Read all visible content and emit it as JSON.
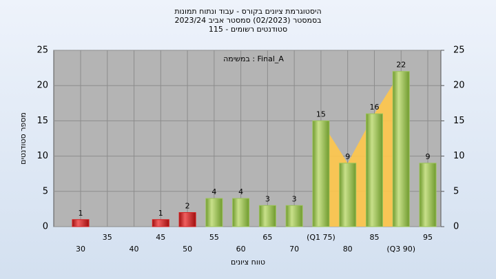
{
  "chart_data": {
    "type": "bar",
    "title": [
      "היסטוגרמת ציונים בקורס - עבוד ונתוח תמונות",
      "בסמסטר  (02/2023)  סמסטר אביב 2023/24",
      "סטודנטים רשומים - 115"
    ],
    "annotation": "במשימה : Final_A",
    "x_label": "טווח ציונים",
    "y_label": "מספר סטודנטים",
    "categories": [
      "30",
      "35",
      "40",
      "45",
      "50",
      "55",
      "60",
      "65",
      "70",
      "(Q1 75)",
      "80",
      "85",
      "(Q3 90)",
      "95"
    ],
    "values": [
      1,
      0,
      0,
      1,
      2,
      4,
      4,
      3,
      3,
      15,
      9,
      16,
      22,
      9
    ],
    "colors": [
      "#d42020",
      "#d42020",
      "#d42020",
      "#d42020",
      "#d42020",
      "#9cc35a",
      "#9cc35a",
      "#9cc35a",
      "#9cc35a",
      "#9cc35a",
      "#9cc35a",
      "#9cc35a",
      "#9cc35a",
      "#9cc35a"
    ],
    "area_color": "#ffc64a",
    "ylim": [
      0,
      25
    ],
    "yticks": [
      0,
      5,
      10,
      15,
      20,
      25
    ],
    "y2lim": [
      0,
      25
    ],
    "y2ticks": [
      0,
      5,
      10,
      15,
      20,
      25
    ],
    "grid": true
  }
}
